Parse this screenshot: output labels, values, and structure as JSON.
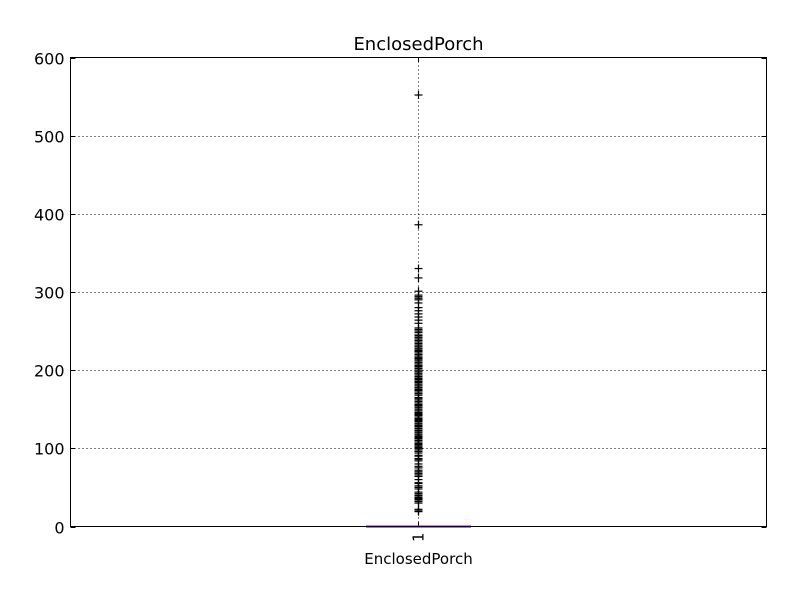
{
  "chart_data": {
    "type": "box",
    "title": "EnclosedPorch",
    "xlabel": "EnclosedPorch",
    "ylabel": "",
    "categories": [
      "1"
    ],
    "ylim": [
      0,
      600
    ],
    "yticks": [
      0,
      100,
      200,
      300,
      400,
      500,
      600
    ],
    "grid": true,
    "box": {
      "q1": 0,
      "median": 0,
      "q3": 0,
      "whisker_low": 0,
      "whisker_high": 0
    },
    "fliers": [
      19,
      20,
      22,
      30,
      32,
      34,
      35,
      36,
      37,
      39,
      40,
      42,
      44,
      48,
      50,
      52,
      55,
      56,
      60,
      64,
      66,
      68,
      70,
      72,
      75,
      77,
      80,
      84,
      86,
      87,
      90,
      91,
      94,
      96,
      98,
      100,
      101,
      102,
      104,
      105,
      106,
      108,
      110,
      112,
      113,
      114,
      115,
      116,
      118,
      120,
      122,
      123,
      125,
      126,
      128,
      129,
      130,
      132,
      134,
      135,
      136,
      137,
      138,
      140,
      142,
      143,
      144,
      145,
      146,
      148,
      150,
      152,
      154,
      155,
      156,
      158,
      160,
      162,
      164,
      165,
      168,
      170,
      172,
      174,
      175,
      176,
      178,
      180,
      182,
      184,
      185,
      186,
      188,
      189,
      190,
      192,
      194,
      196,
      198,
      200,
      202,
      204,
      205,
      206,
      208,
      210,
      212,
      214,
      215,
      216,
      218,
      220,
      222,
      224,
      225,
      226,
      228,
      230,
      232,
      234,
      236,
      238,
      240,
      242,
      244,
      245,
      248,
      250,
      252,
      254,
      260,
      264,
      268,
      272,
      276,
      280,
      286,
      290,
      292,
      294,
      296,
      301,
      318,
      330,
      386,
      552
    ],
    "colors": {
      "box": "#0000ff",
      "median": "#ff0000",
      "flier": "#000000"
    }
  }
}
